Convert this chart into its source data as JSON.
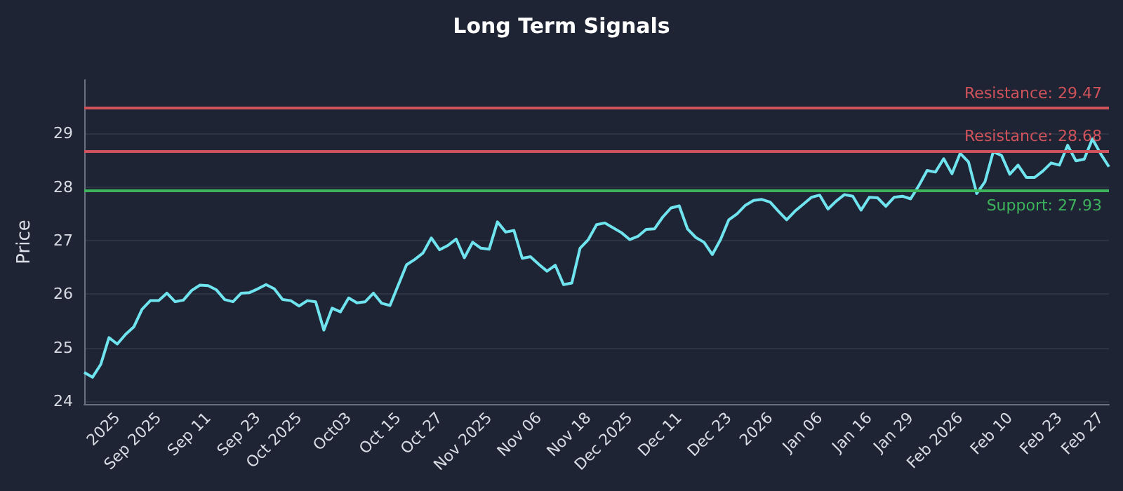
{
  "chart_data": {
    "type": "line",
    "title": "Long Term Signals",
    "ylabel": "Price",
    "categories": [
      null,
      null,
      null,
      null,
      "2025",
      null,
      null,
      null,
      null,
      "Sep 2025",
      null,
      null,
      null,
      null,
      null,
      "Sep 11",
      null,
      null,
      null,
      null,
      null,
      "Sep 23",
      null,
      null,
      null,
      null,
      "Oct 2025",
      null,
      null,
      null,
      null,
      null,
      "Oct03",
      null,
      null,
      null,
      null,
      null,
      "Oct 15",
      null,
      null,
      null,
      null,
      "Oct 27",
      null,
      null,
      null,
      null,
      null,
      "Nov 2025",
      null,
      null,
      null,
      null,
      null,
      "Nov 06",
      null,
      null,
      null,
      null,
      null,
      "Nov 18",
      null,
      null,
      null,
      null,
      "Dec 2025",
      null,
      null,
      null,
      null,
      null,
      "Dec 11",
      null,
      null,
      null,
      null,
      null,
      "Dec 23",
      null,
      null,
      null,
      null,
      "2026",
      null,
      null,
      null,
      null,
      null,
      "Jan 06",
      null,
      null,
      null,
      null,
      null,
      "Jan 16",
      null,
      null,
      null,
      null,
      "Jan 29",
      null,
      null,
      null,
      null,
      null,
      "Feb 2026",
      null,
      null,
      null,
      null,
      null,
      "Feb 10",
      null,
      null,
      null,
      null,
      null,
      "Feb 23",
      null,
      null,
      null,
      null,
      "Feb 27",
      null
    ],
    "series": [
      {
        "color": "#6fe3ee",
        "values": [
          24.54,
          24.45,
          24.69,
          25.19,
          25.07,
          25.25,
          25.39,
          25.72,
          25.88,
          25.88,
          26.02,
          25.86,
          25.89,
          26.07,
          26.17,
          26.16,
          26.08,
          25.9,
          25.86,
          26.02,
          26.03,
          26.1,
          26.18,
          26.1,
          25.9,
          25.88,
          25.78,
          25.88,
          25.86,
          25.33,
          25.74,
          25.67,
          25.93,
          25.84,
          25.86,
          26.02,
          25.83,
          25.79,
          26.17,
          26.55,
          26.65,
          26.77,
          27.05,
          26.83,
          26.91,
          27.03,
          26.68,
          26.97,
          26.86,
          26.84,
          27.35,
          27.16,
          27.19,
          26.67,
          26.7,
          26.56,
          26.43,
          26.54,
          26.18,
          26.21,
          26.86,
          27.02,
          27.3,
          27.33,
          27.24,
          27.15,
          27.02,
          27.08,
          27.21,
          27.22,
          27.44,
          27.61,
          27.65,
          27.22,
          27.06,
          26.97,
          26.74,
          27.02,
          27.39,
          27.5,
          27.66,
          27.75,
          27.77,
          27.72,
          27.55,
          27.39,
          27.55,
          27.68,
          27.81,
          27.85,
          27.59,
          27.74,
          27.86,
          27.83,
          27.57,
          27.81,
          27.8,
          27.64,
          27.81,
          27.83,
          27.78,
          28.03,
          28.31,
          28.28,
          28.53,
          28.25,
          28.63,
          28.47,
          27.88,
          28.1,
          28.66,
          28.59,
          28.24,
          28.41,
          28.18,
          28.18,
          28.3,
          28.45,
          28.41,
          28.78,
          28.49,
          28.52,
          28.9,
          28.62,
          28.38
        ]
      }
    ],
    "ylim": [
      23.95,
      30
    ],
    "yticks": [
      24,
      25,
      26,
      27,
      28,
      29
    ],
    "grid": "y",
    "marker": "none",
    "line_style": "solid",
    "ref_lines": [
      {
        "axis": "y",
        "value": 29.47,
        "label": "Resistance: 29.47",
        "color": "#d0525a"
      },
      {
        "axis": "y",
        "value": 28.68,
        "label": "Resistance: 28.68",
        "color": "#d0525a"
      },
      {
        "axis": "y",
        "value": 27.93,
        "label": "Support: 27.93",
        "color": "#3db35c"
      }
    ]
  }
}
